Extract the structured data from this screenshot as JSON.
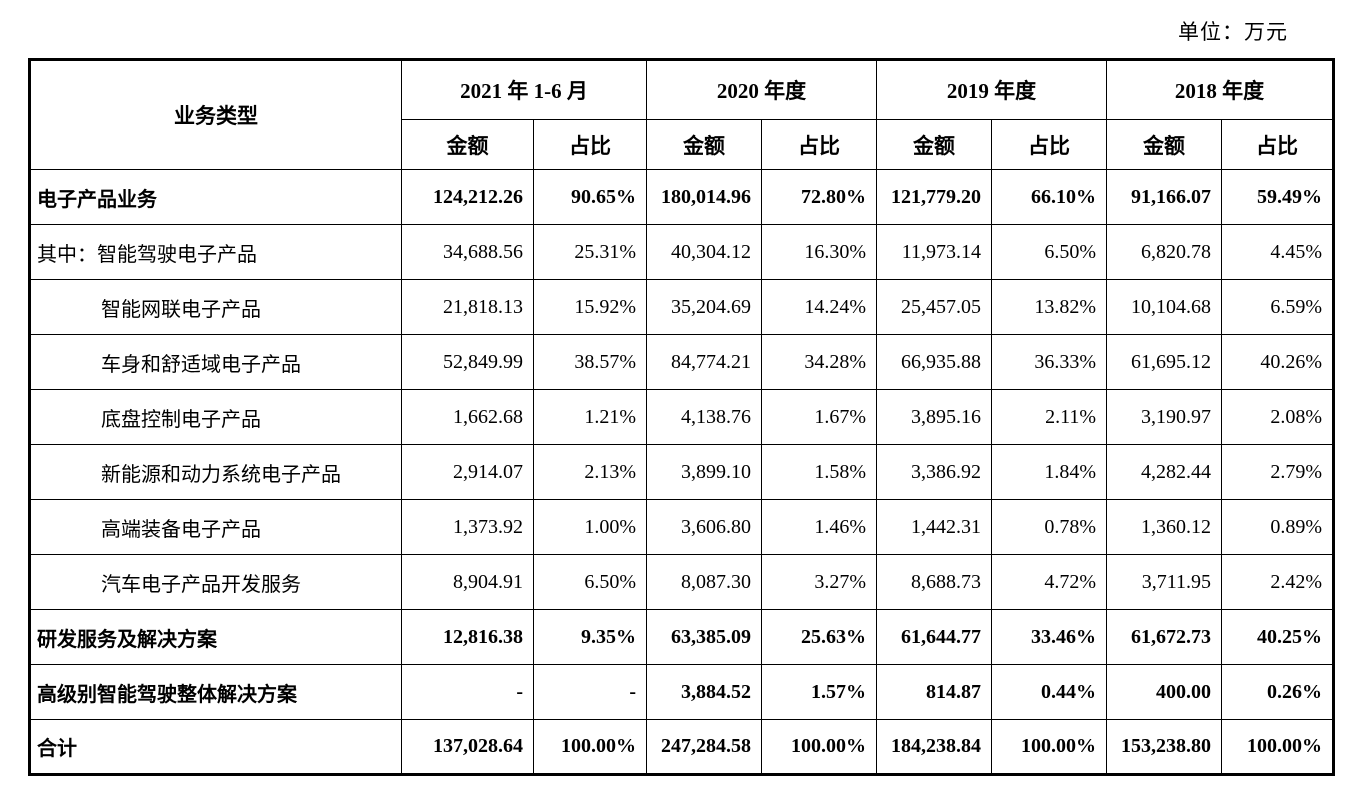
{
  "unit_label": "单位：万元",
  "table": {
    "business_type_header": "业务类型",
    "periods": [
      "2021 年 1-6 月",
      "2020 年度",
      "2019 年度",
      "2018 年度"
    ],
    "amount_header": "金额",
    "ratio_header": "占比",
    "rows": [
      {
        "label": "电子产品业务",
        "bold": true,
        "indent": false,
        "cells": [
          "124,212.26",
          "90.65%",
          "180,014.96",
          "72.80%",
          "121,779.20",
          "66.10%",
          "91,166.07",
          "59.49%"
        ]
      },
      {
        "label": "其中：智能驾驶电子产品",
        "bold": false,
        "indent": false,
        "cells": [
          "34,688.56",
          "25.31%",
          "40,304.12",
          "16.30%",
          "11,973.14",
          "6.50%",
          "6,820.78",
          "4.45%"
        ]
      },
      {
        "label": "智能网联电子产品",
        "bold": false,
        "indent": true,
        "cells": [
          "21,818.13",
          "15.92%",
          "35,204.69",
          "14.24%",
          "25,457.05",
          "13.82%",
          "10,104.68",
          "6.59%"
        ]
      },
      {
        "label": "车身和舒适域电子产品",
        "bold": false,
        "indent": true,
        "cells": [
          "52,849.99",
          "38.57%",
          "84,774.21",
          "34.28%",
          "66,935.88",
          "36.33%",
          "61,695.12",
          "40.26%"
        ]
      },
      {
        "label": "底盘控制电子产品",
        "bold": false,
        "indent": true,
        "cells": [
          "1,662.68",
          "1.21%",
          "4,138.76",
          "1.67%",
          "3,895.16",
          "2.11%",
          "3,190.97",
          "2.08%"
        ]
      },
      {
        "label": "新能源和动力系统电子产品",
        "bold": false,
        "indent": true,
        "cells": [
          "2,914.07",
          "2.13%",
          "3,899.10",
          "1.58%",
          "3,386.92",
          "1.84%",
          "4,282.44",
          "2.79%"
        ]
      },
      {
        "label": "高端装备电子产品",
        "bold": false,
        "indent": true,
        "cells": [
          "1,373.92",
          "1.00%",
          "3,606.80",
          "1.46%",
          "1,442.31",
          "0.78%",
          "1,360.12",
          "0.89%"
        ]
      },
      {
        "label": "汽车电子产品开发服务",
        "bold": false,
        "indent": true,
        "cells": [
          "8,904.91",
          "6.50%",
          "8,087.30",
          "3.27%",
          "8,688.73",
          "4.72%",
          "3,711.95",
          "2.42%"
        ]
      },
      {
        "label": "研发服务及解决方案",
        "bold": true,
        "indent": false,
        "cells": [
          "12,816.38",
          "9.35%",
          "63,385.09",
          "25.63%",
          "61,644.77",
          "33.46%",
          "61,672.73",
          "40.25%"
        ]
      },
      {
        "label": "高级别智能驾驶整体解决方案",
        "bold": true,
        "indent": false,
        "cells": [
          "-",
          "-",
          "3,884.52",
          "1.57%",
          "814.87",
          "0.44%",
          "400.00",
          "0.26%"
        ]
      },
      {
        "label": "合计",
        "bold": true,
        "indent": false,
        "cells": [
          "137,028.64",
          "100.00%",
          "247,284.58",
          "100.00%",
          "184,238.84",
          "100.00%",
          "153,238.80",
          "100.00%"
        ]
      }
    ]
  }
}
